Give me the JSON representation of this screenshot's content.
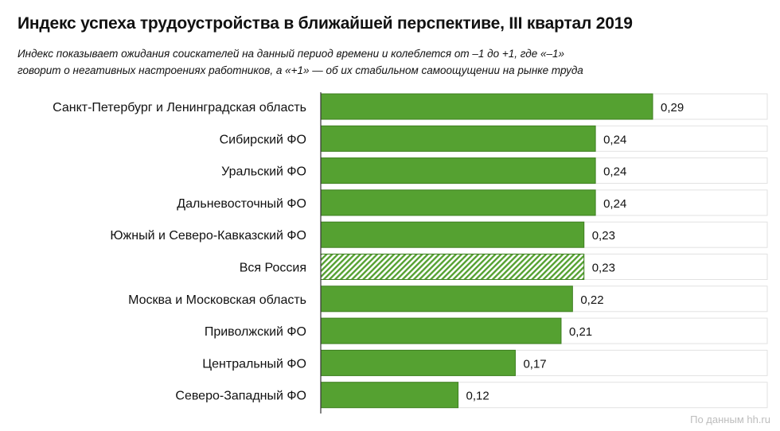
{
  "title": "Индекс успеха трудоустройства в ближайшей перспективе, III квартал 2019",
  "subtitle_lines": [
    "Индекс показывает ожидания соискателей на данный период времени и колеблется от –1 до +1, где «–1»",
    "говорит о негативных настроениях работников, а «+1» — об их стабильном самоощущении на рынке труда"
  ],
  "source": "По данным hh.ru",
  "colors": {
    "bar": "#55a131",
    "bar_border": "#3d7f1f",
    "hatch_fg": "#55a131",
    "hatch_bg": "#ffffff"
  },
  "chart_data": {
    "type": "bar",
    "orientation": "horizontal",
    "categories": [
      "Санкт-Петербург и Ленинградская область",
      "Сибирский ФО",
      "Уральский ФО",
      "Дальневосточный ФО",
      "Южный и Северо-Кавказский ФО",
      "Вся Россия",
      "Москва и Московская область",
      "Приволжский ФО",
      "Центральный ФО",
      "Северо-Западный ФО"
    ],
    "values": [
      0.29,
      0.24,
      0.24,
      0.24,
      0.23,
      0.23,
      0.22,
      0.21,
      0.17,
      0.12
    ],
    "value_labels": [
      "0,29",
      "0,24",
      "0,24",
      "0,24",
      "0,23",
      "0,23",
      "0,22",
      "0,21",
      "0,17",
      "0,12"
    ],
    "highlight": [
      "Вся Россия"
    ],
    "xlim": [
      0,
      0.3
    ],
    "grid": false,
    "legend": "none"
  }
}
